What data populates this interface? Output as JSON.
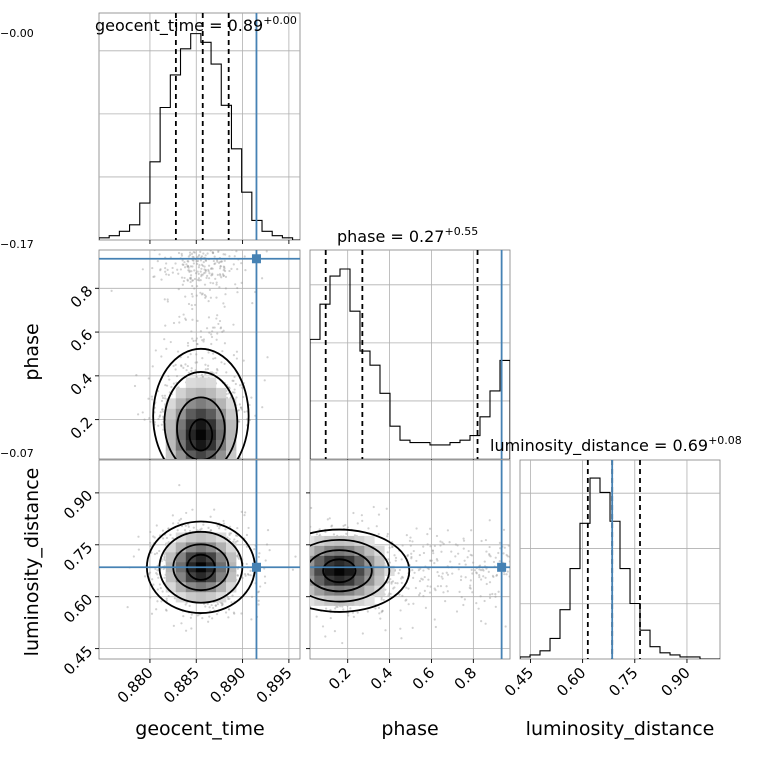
{
  "chart_data": {
    "type": "corner",
    "parameters": [
      "geocent_time",
      "phase",
      "luminosity_distance"
    ],
    "titles": {
      "geocent_time": {
        "param": "geocent_time",
        "median": "0.89",
        "plus": "+0.00",
        "minus": "−0.00"
      },
      "phase": {
        "param": "phase",
        "median": "0.27",
        "plus": "+0.55",
        "minus": "−0.17"
      },
      "luminosity_distance": {
        "param": "luminosity_distance",
        "median": "0.69",
        "plus": "+0.08",
        "minus": "−0.07"
      }
    },
    "axis_labels": {
      "x": [
        "geocent_time",
        "phase",
        "luminosity_distance"
      ],
      "y": [
        "phase",
        "luminosity_distance"
      ]
    },
    "ranges": {
      "geocent_time": [
        0.8745,
        0.8962
      ],
      "phase": [
        0.02,
        0.975
      ],
      "luminosity_distance": [
        0.42,
        0.995
      ]
    },
    "ticks": {
      "geocent_time": {
        "values": [
          0.88,
          0.885,
          0.89,
          0.895
        ],
        "labels": [
          "0.880",
          "0.885",
          "0.890",
          "0.895"
        ]
      },
      "phase": {
        "values": [
          0.2,
          0.4,
          0.6,
          0.8
        ],
        "labels": [
          "0.2",
          "0.4",
          "0.6",
          "0.8"
        ]
      },
      "luminosity_distance": {
        "values": [
          0.45,
          0.6,
          0.75,
          0.9
        ],
        "labels": [
          "0.45",
          "0.60",
          "0.75",
          "0.90"
        ]
      }
    },
    "truths": {
      "geocent_time": 0.8915,
      "phase": 0.935,
      "luminosity_distance": 0.685
    },
    "quantiles": {
      "geocent_time": [
        0.8828,
        0.8857,
        0.8885
      ],
      "phase": [
        0.095,
        0.27,
        0.82
      ],
      "luminosity_distance": [
        0.615,
        0.685,
        0.765
      ]
    },
    "histograms": {
      "geocent_time": {
        "edges": [
          0.8745,
          0.8756,
          0.8767,
          0.8778,
          0.8789,
          0.88,
          0.8811,
          0.8822,
          0.8833,
          0.8844,
          0.8855,
          0.8866,
          0.8877,
          0.8888,
          0.8899,
          0.891,
          0.8921,
          0.8932,
          0.8943,
          0.8954,
          0.8962
        ],
        "counts": [
          1,
          2,
          4,
          7,
          17,
          36,
          61,
          76,
          88,
          95,
          91,
          81,
          62,
          42,
          22,
          9,
          4,
          2,
          1,
          0
        ]
      },
      "phase": {
        "edges": [
          0.02,
          0.0677,
          0.1155,
          0.1632,
          0.211,
          0.2587,
          0.3065,
          0.3542,
          0.402,
          0.4497,
          0.4975,
          0.5452,
          0.593,
          0.6407,
          0.6885,
          0.7362,
          0.784,
          0.8317,
          0.8795,
          0.9272,
          0.975
        ],
        "counts": [
          51,
          66,
          78,
          81,
          63,
          46,
          40,
          28,
          14,
          8,
          7,
          7,
          6,
          6,
          7,
          8,
          10,
          18,
          29,
          42
        ]
      },
      "luminosity_distance": {
        "edges": [
          0.42,
          0.4488,
          0.4775,
          0.5063,
          0.535,
          0.5638,
          0.5925,
          0.6213,
          0.65,
          0.6788,
          0.7075,
          0.7363,
          0.765,
          0.7938,
          0.8225,
          0.8513,
          0.88,
          0.9088,
          0.9375,
          0.9663,
          0.995
        ],
        "counts": [
          1,
          2,
          4,
          10,
          24,
          44,
          66,
          88,
          81,
          67,
          44,
          27,
          14,
          6,
          3,
          2,
          1,
          1,
          0,
          0
        ]
      }
    },
    "joint_peaks": {
      "geocent_time_phase": {
        "x": 0.8855,
        "y": 0.13
      },
      "geocent_time_luminosity_distance": {
        "x": 0.8855,
        "y": 0.685
      },
      "phase_luminosity_distance": {
        "x": 0.16,
        "y": 0.675
      }
    },
    "grid": true,
    "colors": {
      "truth": "#4682b4",
      "density": "#000000",
      "scatter": "#9a9a9a"
    }
  }
}
